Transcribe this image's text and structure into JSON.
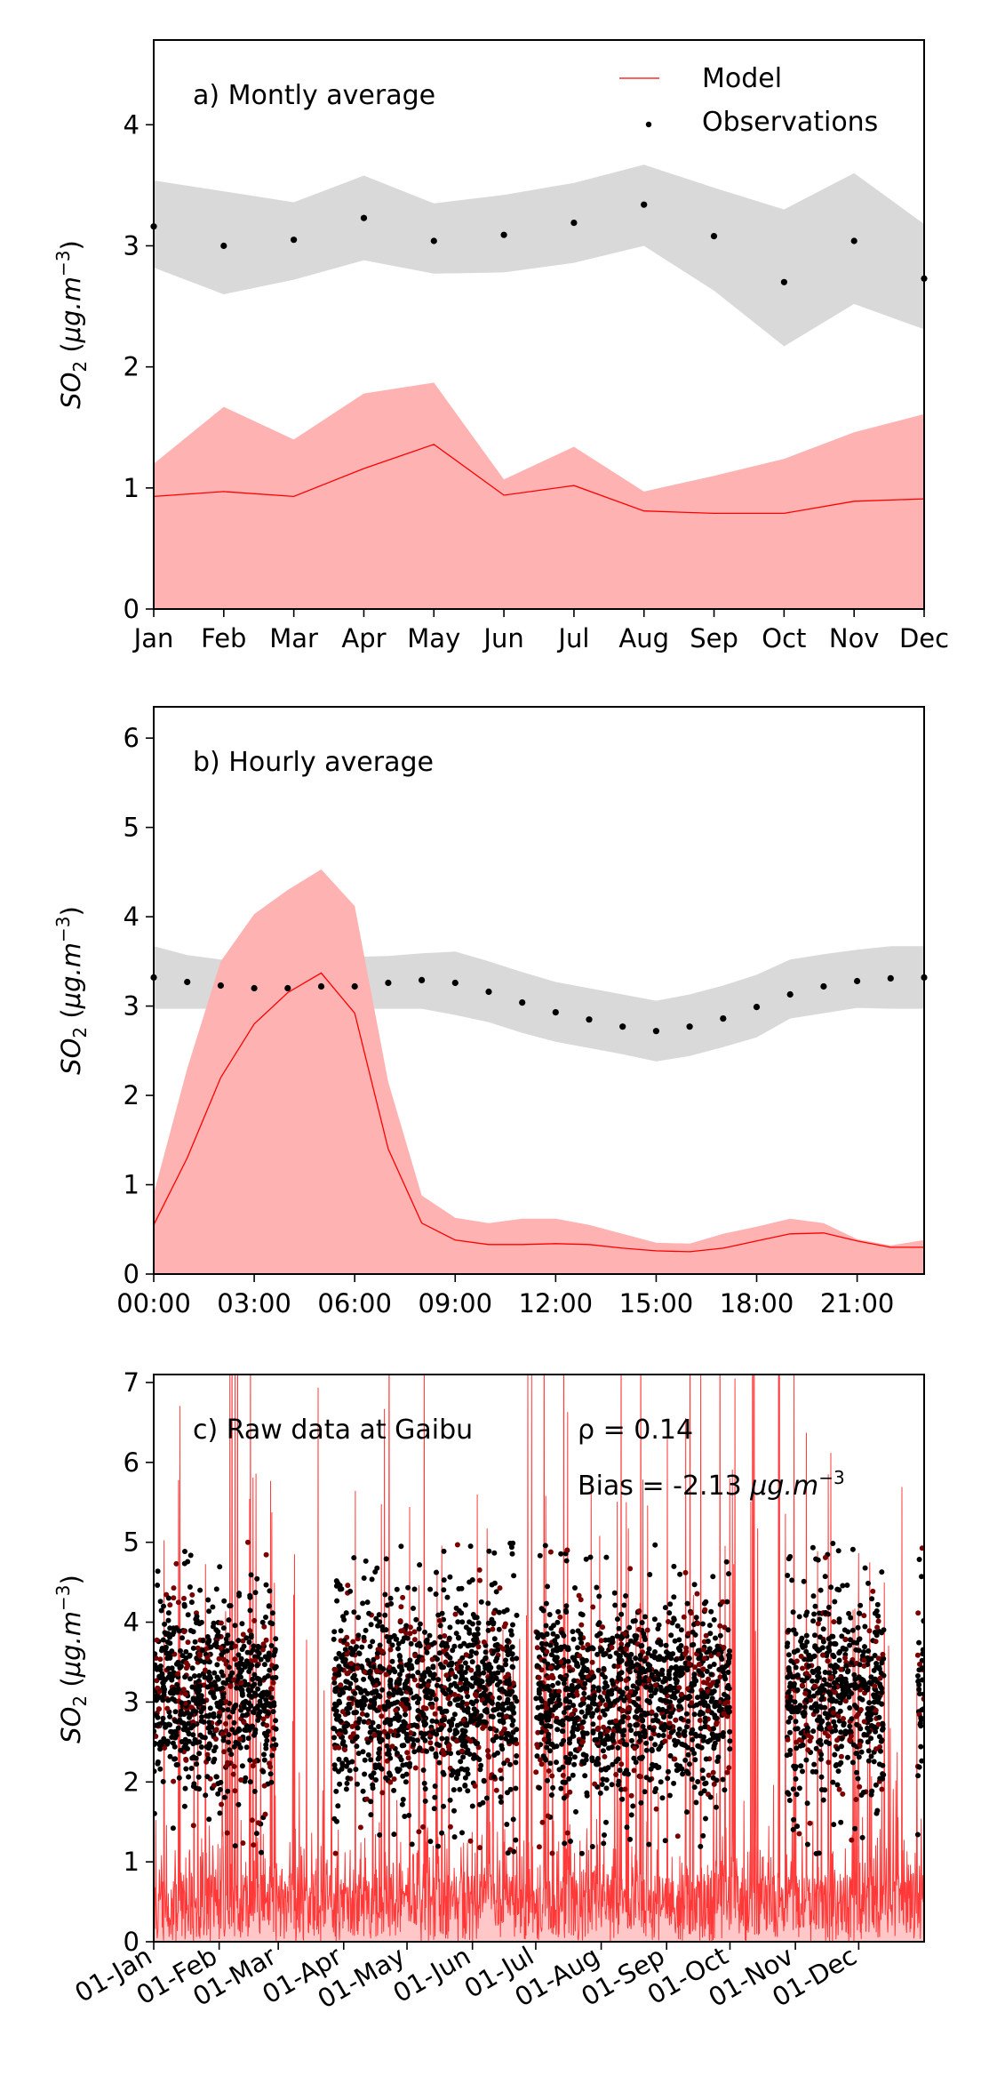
{
  "chart_data": [
    {
      "type": "line",
      "title": "a) Montly average",
      "ylabel": "SO_2 (μg.m^-3)",
      "ylim": [
        0,
        4.7
      ],
      "yticks": [
        0,
        1,
        2,
        3,
        4
      ],
      "categories": [
        "Jan",
        "Feb",
        "Mar",
        "Apr",
        "May",
        "Jun",
        "Jul",
        "Aug",
        "Sep",
        "Oct",
        "Nov",
        "Dec"
      ],
      "legend": {
        "placement": "top-right",
        "model_label": "Model",
        "obs_label": "Observations"
      },
      "model": {
        "name": "Model",
        "values": [
          0.93,
          0.97,
          0.93,
          1.16,
          1.36,
          0.94,
          1.02,
          0.81,
          0.79,
          0.79,
          0.89,
          0.91
        ],
        "band_low": [
          0,
          0,
          0,
          0,
          0,
          0,
          0,
          0,
          0,
          0,
          0,
          0
        ],
        "band_high": [
          1.2,
          1.67,
          1.4,
          1.78,
          1.87,
          1.07,
          1.34,
          0.97,
          1.1,
          1.24,
          1.46,
          1.61
        ],
        "color": "#ff0000",
        "band_color": "#ffb2b2"
      },
      "observations": {
        "name": "Observations",
        "values": [
          3.16,
          3.0,
          3.05,
          3.23,
          3.04,
          3.09,
          3.19,
          3.34,
          3.08,
          2.7,
          3.04,
          2.73
        ],
        "band_low": [
          2.82,
          2.6,
          2.72,
          2.88,
          2.77,
          2.78,
          2.86,
          3.0,
          2.63,
          2.17,
          2.52,
          2.31
        ],
        "band_high": [
          3.54,
          3.45,
          3.36,
          3.58,
          3.35,
          3.42,
          3.52,
          3.67,
          3.48,
          3.3,
          3.6,
          3.18
        ],
        "color": "#000000",
        "band_color": "#d9d9d9"
      }
    },
    {
      "type": "line",
      "title": "b) Hourly average",
      "ylabel": "SO_2 (μg.m^-3)",
      "ylim": [
        0,
        6.35
      ],
      "yticks": [
        0,
        1,
        2,
        3,
        4,
        5,
        6
      ],
      "x": [
        0,
        1,
        2,
        3,
        4,
        5,
        6,
        7,
        8,
        9,
        10,
        11,
        12,
        13,
        14,
        15,
        16,
        17,
        18,
        19,
        20,
        21,
        22,
        23
      ],
      "xticks": [
        0,
        3,
        6,
        9,
        12,
        15,
        18,
        21
      ],
      "xtick_labels": [
        "00:00",
        "03:00",
        "06:00",
        "09:00",
        "12:00",
        "15:00",
        "18:00",
        "21:00"
      ],
      "model": {
        "name": "Model",
        "values": [
          0.55,
          1.3,
          2.2,
          2.8,
          3.15,
          3.37,
          2.92,
          1.4,
          0.57,
          0.38,
          0.33,
          0.33,
          0.34,
          0.33,
          0.29,
          0.26,
          0.25,
          0.29,
          0.37,
          0.45,
          0.46,
          0.37,
          0.3,
          0.3
        ],
        "band_low": [
          0,
          0,
          0,
          0,
          0,
          0,
          0,
          0,
          0,
          0,
          0,
          0,
          0,
          0,
          0,
          0,
          0,
          0,
          0,
          0,
          0,
          0,
          0,
          0
        ],
        "band_high": [
          0.9,
          2.3,
          3.5,
          4.03,
          4.3,
          4.53,
          4.12,
          2.15,
          0.88,
          0.63,
          0.57,
          0.62,
          0.62,
          0.55,
          0.45,
          0.35,
          0.34,
          0.45,
          0.53,
          0.62,
          0.57,
          0.39,
          0.32,
          0.38
        ],
        "color": "#ff0000",
        "band_color": "#ffb2b2"
      },
      "observations": {
        "name": "Observations",
        "values": [
          3.32,
          3.27,
          3.23,
          3.2,
          3.2,
          3.22,
          3.22,
          3.26,
          3.29,
          3.26,
          3.16,
          3.04,
          2.93,
          2.85,
          2.77,
          2.72,
          2.77,
          2.86,
          2.99,
          3.13,
          3.22,
          3.28,
          3.31,
          3.32
        ],
        "band_low": [
          2.97,
          2.97,
          2.97,
          2.97,
          2.97,
          2.97,
          2.97,
          2.97,
          2.97,
          2.9,
          2.82,
          2.7,
          2.6,
          2.53,
          2.46,
          2.38,
          2.44,
          2.54,
          2.65,
          2.86,
          2.92,
          2.98,
          2.97,
          2.97
        ],
        "band_high": [
          3.67,
          3.57,
          3.52,
          3.5,
          3.5,
          3.53,
          3.55,
          3.56,
          3.59,
          3.61,
          3.5,
          3.38,
          3.27,
          3.2,
          3.13,
          3.06,
          3.13,
          3.23,
          3.35,
          3.52,
          3.58,
          3.63,
          3.67,
          3.67
        ],
        "color": "#000000",
        "band_color": "#d9d9d9"
      }
    },
    {
      "type": "scatter",
      "title": "c) Raw data at Gaibu",
      "ylabel": "SO_2 (μg.m^-3)",
      "ylim": [
        0,
        7.1
      ],
      "yticks": [
        0,
        1,
        2,
        3,
        4,
        5,
        6,
        7
      ],
      "xrange_days": [
        0,
        365
      ],
      "month_starts": [
        0,
        31,
        59,
        90,
        120,
        151,
        181,
        212,
        243,
        273,
        304,
        334
      ],
      "xtick_labels": [
        "01-Jan",
        "01-Feb",
        "01-Mar",
        "01-Apr",
        "01-May",
        "01-Jun",
        "01-Jul",
        "01-Aug",
        "01-Sep",
        "01-Oct",
        "01-Nov",
        "01-Dec"
      ],
      "stats": {
        "rho_text": "ρ = 0.14",
        "bias_text": "Bias = -2.13 μg.m^-3"
      },
      "model": {
        "name": "Model",
        "description_of_series": "hourly raw model values, mostly 0–1 with frequent spikes to ~5–7 and above",
        "typical_range": [
          0,
          1
        ],
        "spike_max": 7.1,
        "color": "#ff1a1a"
      },
      "observations": {
        "name": "Observations",
        "coverage_days": [
          [
            0,
            58
          ],
          [
            85,
            172
          ],
          [
            181,
            273
          ],
          [
            300,
            346
          ],
          [
            362,
            365
          ]
        ],
        "typical_range": [
          2.0,
          4.3
        ],
        "max_value": 5.0,
        "color": "#000000"
      }
    }
  ]
}
